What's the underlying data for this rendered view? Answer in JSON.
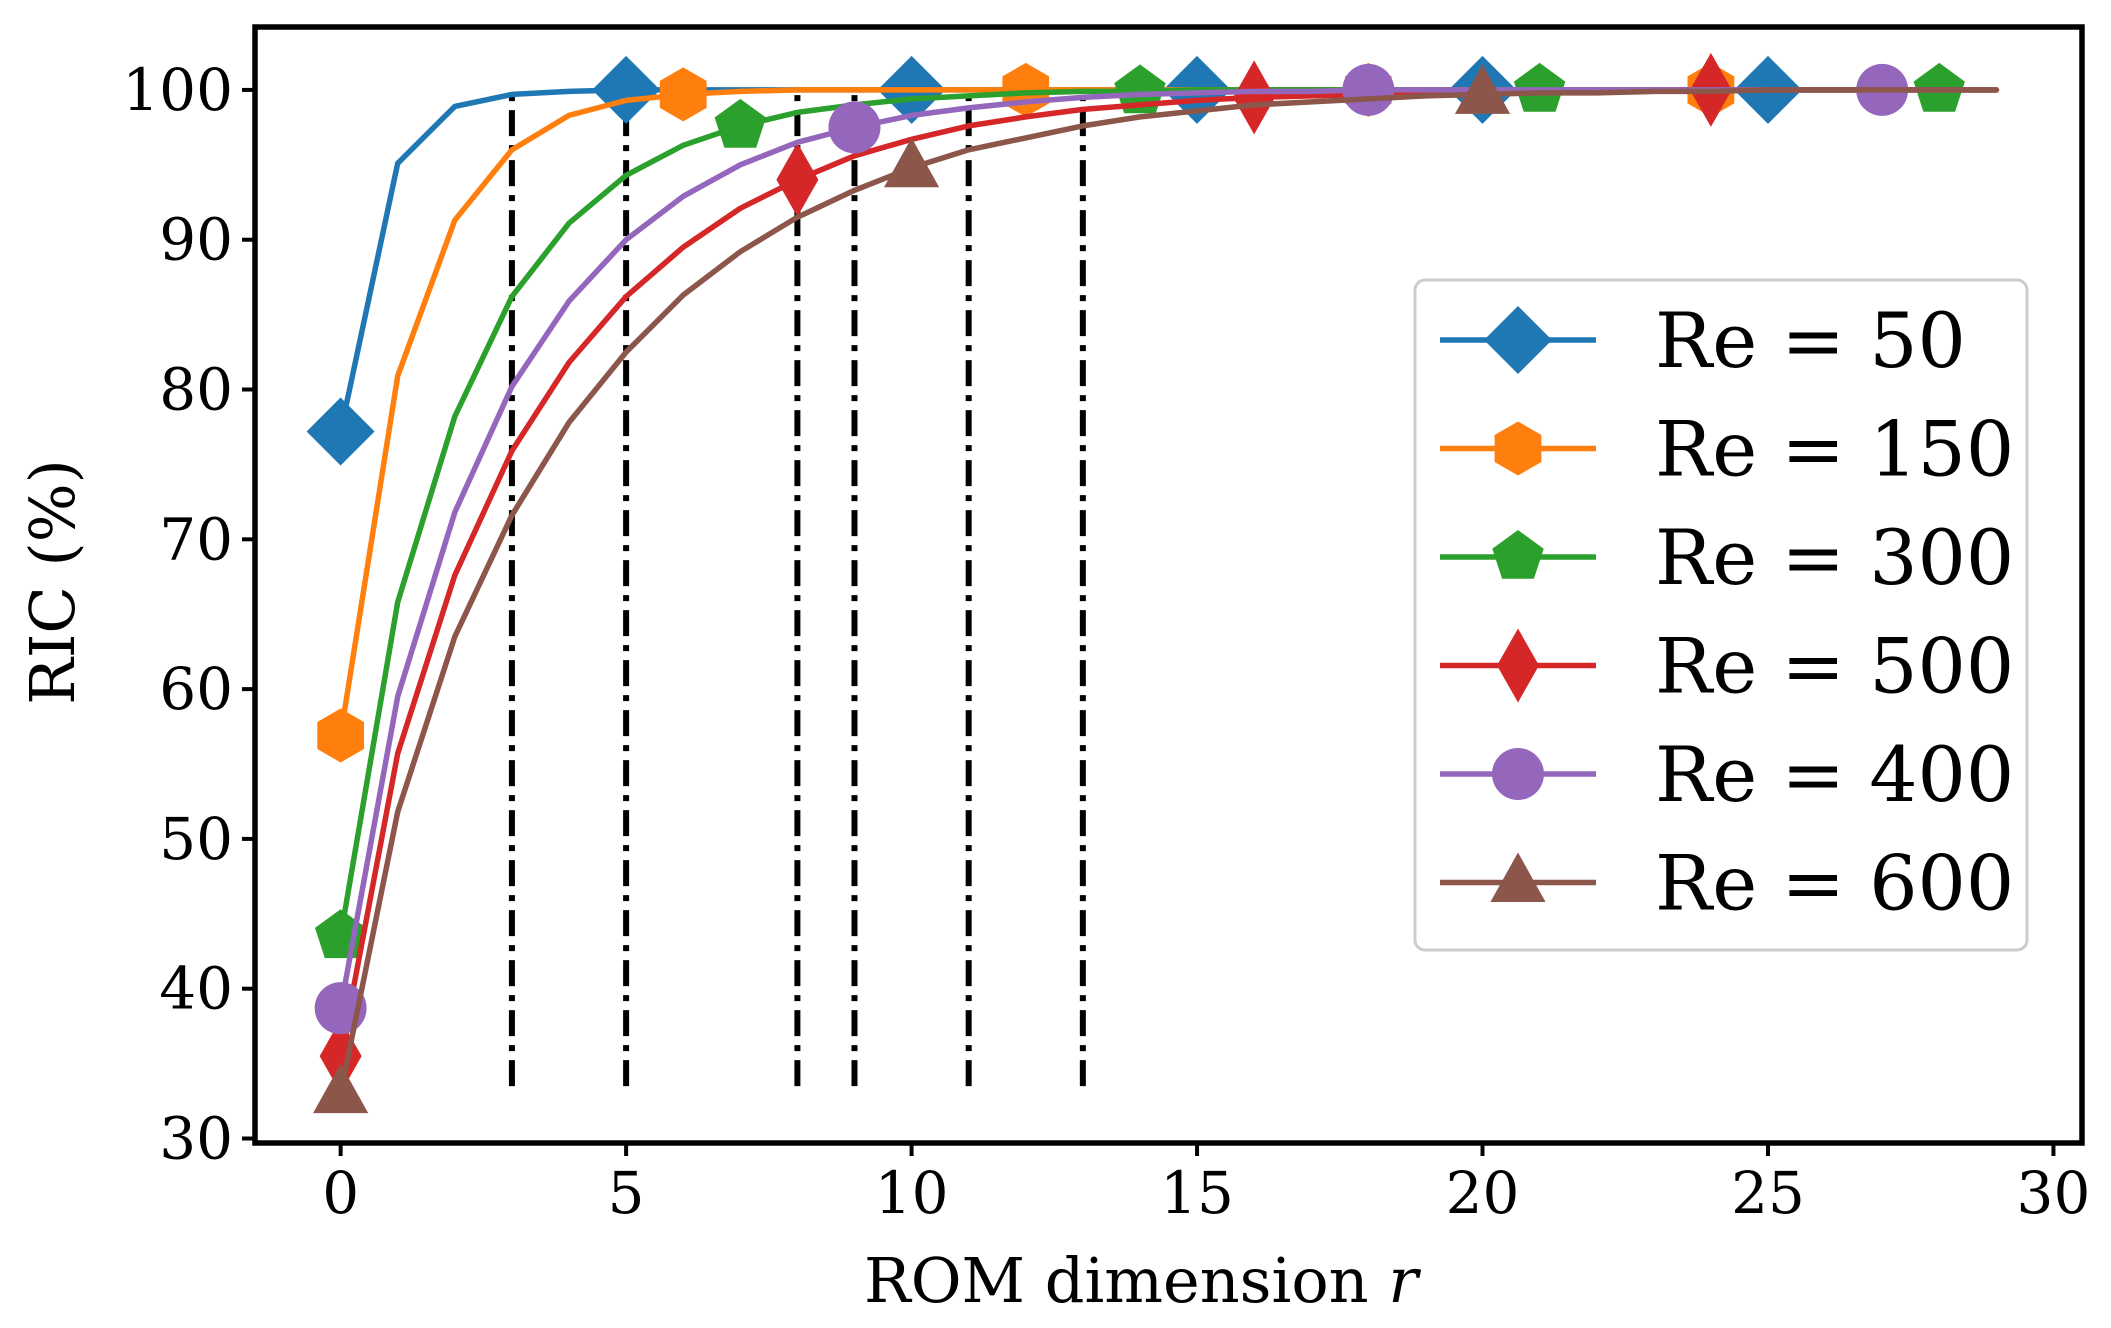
{
  "chart_data": {
    "type": "line",
    "xlabel": "ROM dimension",
    "xlabel_var": "r",
    "ylabel": "RIC (%)",
    "xlim": [
      -1.5,
      30.5
    ],
    "ylim": [
      29.7,
      104.2
    ],
    "xticks": [
      0,
      5,
      10,
      15,
      20,
      25,
      30
    ],
    "yticks": [
      30,
      40,
      50,
      60,
      70,
      80,
      90,
      100
    ],
    "grid": false,
    "legend_position": "center-right",
    "x": [
      0,
      1,
      2,
      3,
      4,
      5,
      6,
      7,
      8,
      9,
      10,
      11,
      12,
      13,
      14,
      15,
      16,
      17,
      18,
      19,
      20,
      21,
      22,
      23,
      24,
      25,
      26,
      27,
      28,
      29
    ],
    "series": [
      {
        "name": "Re = 50",
        "color": "#1f77b4",
        "marker": "diamond",
        "markers_at": [
          0,
          5,
          10,
          15,
          20,
          25
        ],
        "values": [
          77.2,
          95.1,
          98.9,
          99.7,
          99.9,
          100.0,
          100.0,
          100.0,
          100.0,
          100.0,
          100.0,
          100.0,
          100.0,
          100.0,
          100.0,
          100.0,
          100.0,
          100.0,
          100.0,
          100.0,
          100.0,
          100.0,
          100.0,
          100.0,
          100.0,
          100.0,
          100.0,
          100.0,
          100.0,
          100.0
        ]
      },
      {
        "name": "Re = 150",
        "color": "#ff7f0e",
        "marker": "hexagon",
        "markers_at": [
          0,
          6,
          12,
          18,
          24
        ],
        "values": [
          56.9,
          80.9,
          91.3,
          96.0,
          98.3,
          99.3,
          99.7,
          99.9,
          100.0,
          100.0,
          100.0,
          100.0,
          100.0,
          100.0,
          100.0,
          100.0,
          100.0,
          100.0,
          100.0,
          100.0,
          100.0,
          100.0,
          100.0,
          100.0,
          100.0,
          100.0,
          100.0,
          100.0,
          100.0,
          100.0
        ]
      },
      {
        "name": "Re = 300",
        "color": "#2ca02c",
        "marker": "pentagon",
        "markers_at": [
          0,
          7,
          14,
          21,
          28
        ],
        "values": [
          43.5,
          65.8,
          78.2,
          86.2,
          91.1,
          94.3,
          96.3,
          97.6,
          98.5,
          99.0,
          99.4,
          99.6,
          99.8,
          99.9,
          99.9,
          100.0,
          100.0,
          100.0,
          100.0,
          100.0,
          100.0,
          100.0,
          100.0,
          100.0,
          100.0,
          100.0,
          100.0,
          100.0,
          100.0,
          100.0
        ]
      },
      {
        "name": "Re = 500",
        "color": "#d62728",
        "marker": "thin_diamond",
        "markers_at": [
          0,
          8,
          16,
          24
        ],
        "values": [
          35.5,
          55.7,
          67.6,
          75.9,
          81.8,
          86.2,
          89.5,
          92.1,
          94.0,
          95.6,
          96.7,
          97.6,
          98.2,
          98.7,
          99.0,
          99.3,
          99.5,
          99.6,
          99.7,
          99.8,
          99.9,
          99.9,
          99.9,
          100.0,
          100.0,
          100.0,
          100.0,
          100.0,
          100.0,
          100.0
        ]
      },
      {
        "name": "Re = 400",
        "color": "#9467bd",
        "marker": "circle",
        "markers_at": [
          0,
          9,
          18,
          27
        ],
        "values": [
          38.7,
          59.5,
          71.8,
          80.2,
          85.9,
          90.0,
          92.9,
          95.0,
          96.5,
          97.5,
          98.3,
          98.8,
          99.2,
          99.5,
          99.7,
          99.8,
          99.9,
          99.9,
          100.0,
          100.0,
          100.0,
          100.0,
          100.0,
          100.0,
          100.0,
          100.0,
          100.0,
          100.0,
          100.0,
          100.0
        ]
      },
      {
        "name": "Re = 600",
        "color": "#8c564b",
        "marker": "triangle",
        "markers_at": [
          0,
          10,
          20
        ],
        "values": [
          33.0,
          51.8,
          63.5,
          71.6,
          77.8,
          82.5,
          86.3,
          89.2,
          91.5,
          93.3,
          94.8,
          96.0,
          96.8,
          97.6,
          98.2,
          98.6,
          99.0,
          99.2,
          99.4,
          99.6,
          99.7,
          99.8,
          99.8,
          99.9,
          99.9,
          100.0,
          100.0,
          100.0,
          100.0,
          100.0
        ]
      }
    ],
    "vlines": {
      "x": [
        3,
        5,
        8,
        9,
        11,
        13
      ],
      "ymin": 33.5,
      "ymax": 100,
      "style": "dash-dot",
      "color": "#000000"
    }
  }
}
